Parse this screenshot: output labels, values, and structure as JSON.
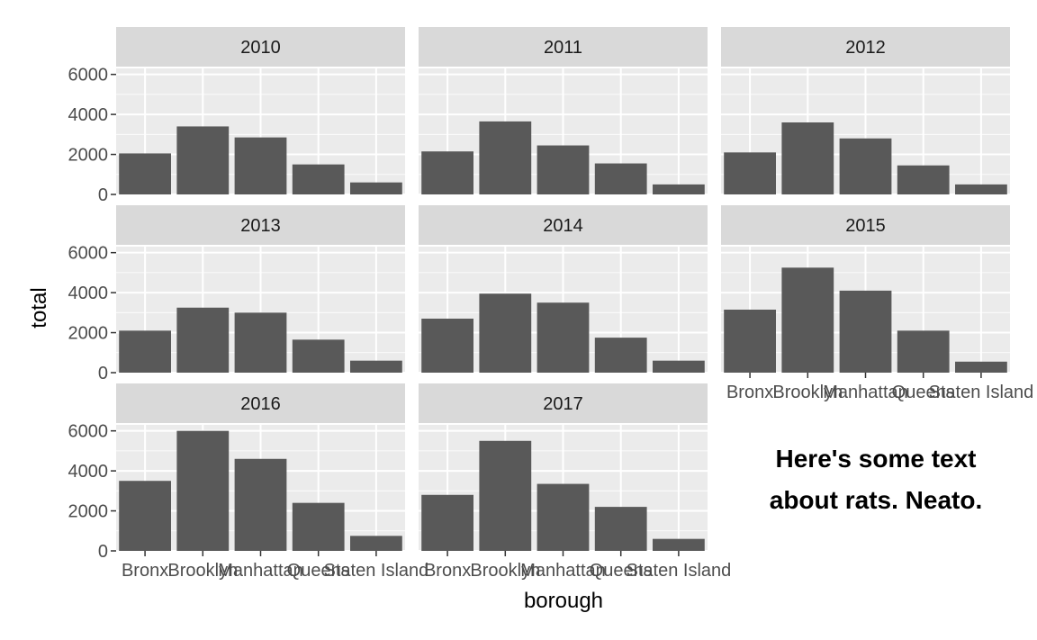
{
  "chart_data": {
    "type": "bar",
    "facet_by": "year",
    "facet_columns": 3,
    "xlabel": "borough",
    "ylabel": "total",
    "categories": [
      "Bronx",
      "Brooklyn",
      "Manhattan",
      "Queens",
      "Staten Island"
    ],
    "ylim": [
      0,
      6300
    ],
    "y_ticks": [
      0,
      2000,
      4000,
      6000
    ],
    "y_tick_labels": [
      "0",
      "2000",
      "4000",
      "6000"
    ],
    "panels": [
      {
        "year": "2010",
        "values": [
          2050,
          3400,
          2850,
          1500,
          600
        ]
      },
      {
        "year": "2011",
        "values": [
          2150,
          3650,
          2450,
          1550,
          500
        ]
      },
      {
        "year": "2012",
        "values": [
          2100,
          3600,
          2800,
          1450,
          500
        ]
      },
      {
        "year": "2013",
        "values": [
          2100,
          3250,
          3000,
          1650,
          600
        ]
      },
      {
        "year": "2014",
        "values": [
          2700,
          3950,
          3500,
          1750,
          600
        ]
      },
      {
        "year": "2015",
        "values": [
          3150,
          5250,
          4100,
          2100,
          550
        ]
      },
      {
        "year": "2016",
        "values": [
          3500,
          6000,
          4600,
          2400,
          750
        ]
      },
      {
        "year": "2017",
        "values": [
          2800,
          5500,
          3350,
          2200,
          600
        ]
      }
    ]
  },
  "annotation": {
    "lines": [
      "Here's some text",
      "about rats. Neato."
    ]
  }
}
